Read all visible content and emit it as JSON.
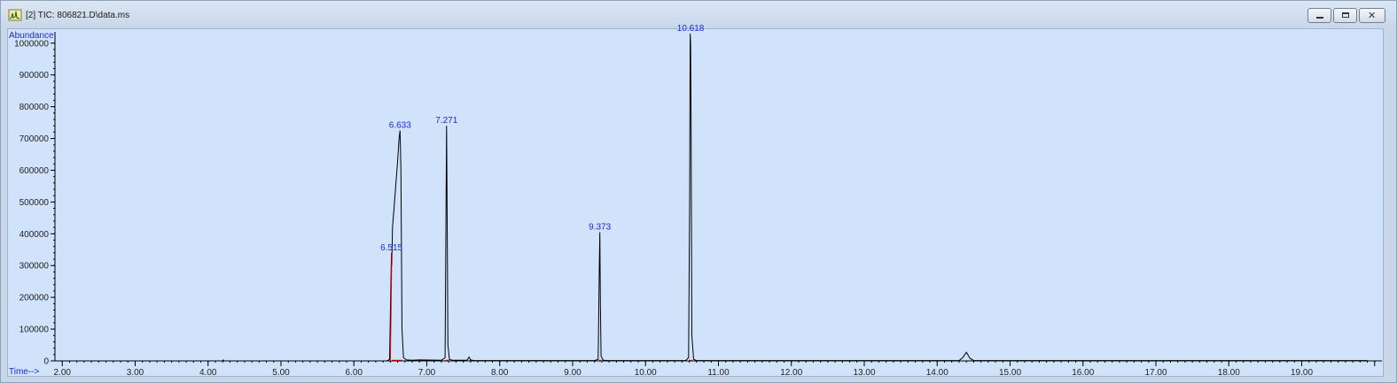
{
  "window": {
    "title": "[2] TIC: 806821.D\\data.ms",
    "icon": "chromatogram-app-icon",
    "buttons": {
      "minimize_icon": "minimize-icon",
      "maximize_icon": "maximize-icon",
      "close_icon": "close-icon",
      "close_glyph": "✕"
    }
  },
  "colors": {
    "plot_background": "#d1e2fb",
    "trace": "#000000",
    "baseline": "#e00000",
    "peak_labels": "#1a2bd0"
  },
  "chart_data": {
    "type": "line",
    "title": "",
    "ylabel": "Abundance",
    "xlabel": "Time-->",
    "xlim": [
      1.9,
      20.1
    ],
    "ylim": [
      0,
      1030000
    ],
    "x_ticks": [
      "2.00",
      "3.00",
      "4.00",
      "5.00",
      "6.00",
      "7.00",
      "8.00",
      "9.00",
      "10.00",
      "11.00",
      "12.00",
      "13.00",
      "14.00",
      "15.00",
      "16.00",
      "17.00",
      "18.00",
      "19.00"
    ],
    "x_tick_values": [
      2,
      3,
      4,
      5,
      6,
      7,
      8,
      9,
      10,
      11,
      12,
      13,
      14,
      15,
      16,
      17,
      18,
      19
    ],
    "y_ticks": [
      "0",
      "100000",
      "200000",
      "300000",
      "400000",
      "500000",
      "600000",
      "700000",
      "800000",
      "900000",
      "1000000"
    ],
    "y_tick_values": [
      0,
      100000,
      200000,
      300000,
      400000,
      500000,
      600000,
      700000,
      800000,
      900000,
      1000000
    ],
    "grid": false,
    "series": [
      {
        "x": [
          1.95,
          4.2,
          4.21,
          4.22,
          6.45,
          6.49,
          6.5,
          6.515,
          6.52,
          6.53,
          6.55,
          6.6,
          6.62,
          6.633,
          6.645,
          6.66,
          6.68,
          6.72,
          6.8,
          6.9,
          7.2,
          7.25,
          7.262,
          7.271,
          7.278,
          7.29,
          7.31,
          7.35,
          7.55,
          7.58,
          7.6,
          7.65,
          9.3,
          9.35,
          9.365,
          9.373,
          9.38,
          9.39,
          9.42,
          9.5,
          10.55,
          10.59,
          10.605,
          10.612,
          10.618,
          10.624,
          10.635,
          10.66,
          10.7,
          14.3,
          14.35,
          14.4,
          14.45,
          14.5,
          19.9
        ],
        "y": [
          0,
          0,
          3000,
          0,
          0,
          5000,
          150000,
          340000,
          300000,
          420000,
          480000,
          630000,
          700000,
          725000,
          600000,
          100000,
          10000,
          3000,
          2000,
          3000,
          2000,
          10000,
          400000,
          740000,
          480000,
          50000,
          5000,
          2000,
          2000,
          12000,
          3000,
          1000,
          1000,
          5000,
          280000,
          405000,
          180000,
          15000,
          2000,
          1000,
          1000,
          10000,
          500000,
          1030000,
          1000000,
          770000,
          80000,
          5000,
          1000,
          1000,
          10000,
          27000,
          8000,
          1000,
          1000
        ]
      }
    ],
    "baselines": [
      {
        "x": [
          6.5,
          6.52
        ],
        "y": [
          0,
          340000
        ]
      },
      {
        "x": [
          6.52,
          6.66
        ],
        "y": [
          2000,
          2000
        ]
      },
      {
        "x": [
          7.255,
          7.3
        ],
        "y": [
          2000,
          2000
        ]
      },
      {
        "x": [
          9.36,
          9.39
        ],
        "y": [
          2000,
          2000
        ]
      },
      {
        "x": [
          10.6,
          10.64
        ],
        "y": [
          2000,
          2000
        ]
      }
    ],
    "peak_labels": [
      {
        "label": "6.515",
        "x": 6.515,
        "y": 340000
      },
      {
        "label": "6.633",
        "x": 6.633,
        "y": 725000
      },
      {
        "label": "7.271",
        "x": 7.271,
        "y": 740000
      },
      {
        "label": "9.373",
        "x": 9.373,
        "y": 405000
      },
      {
        "label": "10.618",
        "x": 10.618,
        "y": 1030000
      }
    ]
  }
}
